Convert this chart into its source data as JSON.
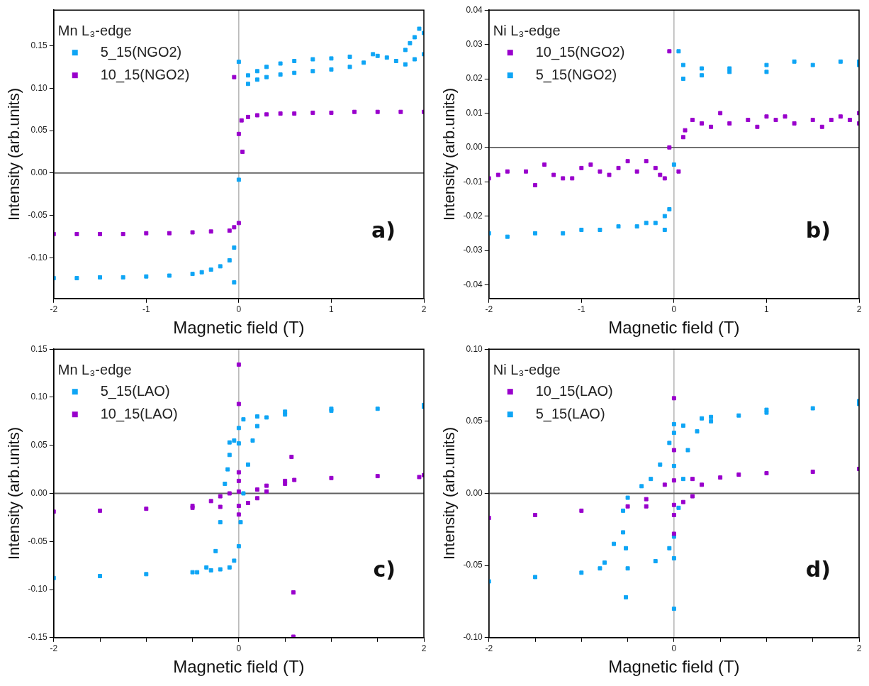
{
  "chart_data": [
    {
      "type": "scatter",
      "xlabel": "Magnetic field (T)",
      "ylabel": "Intensity (arb.units)",
      "legend_title": "Mn L₃-edge",
      "legend": "top left",
      "marker": "square",
      "annotations": [
        "a)"
      ],
      "xlim": [
        -2,
        2
      ],
      "xticks": [
        -2,
        -1,
        0,
        1,
        2
      ],
      "ylim": [
        -0.148,
        0.192
      ],
      "yticks": [
        {
          "value": -0.1,
          "label": "-0.10"
        },
        {
          "value": -0.05,
          "label": "-0.05"
        },
        {
          "value": 0,
          "label": "0.00"
        },
        {
          "value": 0.05,
          "label": "0.05"
        },
        {
          "value": 0.1,
          "label": "0.10"
        },
        {
          "value": 0.15,
          "label": "0.15"
        }
      ],
      "ref_lines": [
        {
          "axis": "x",
          "value": 0,
          "color": "#a0a0a0"
        },
        {
          "axis": "y",
          "value": 0,
          "color": "#606060"
        }
      ],
      "series": [
        {
          "name": "5_15(NGO2)",
          "color": "#0ea5f5",
          "x": [
            -2,
            -1.75,
            -1.5,
            -1.25,
            -1,
            -0.75,
            -0.5,
            -0.4,
            -0.3,
            -0.2,
            -0.1,
            -0.05,
            -0.05,
            0,
            0,
            0.1,
            0.2,
            0.3,
            0.45,
            0.6,
            0.8,
            1,
            1.2,
            1.35,
            1.5,
            1.6,
            1.7,
            1.8,
            1.9,
            2,
            0.1,
            0.2,
            0.3,
            0.45,
            0.6,
            0.8,
            1,
            1.2,
            1.45,
            1.8,
            1.85,
            1.9,
            1.95,
            2
          ],
          "values": [
            -0.124,
            -0.124,
            -0.123,
            -0.123,
            -0.122,
            -0.121,
            -0.119,
            -0.117,
            -0.114,
            -0.11,
            -0.103,
            -0.088,
            -0.129,
            -0.008,
            0.131,
            0.105,
            0.11,
            0.113,
            0.116,
            0.118,
            0.12,
            0.122,
            0.125,
            0.13,
            0.138,
            0.136,
            0.132,
            0.128,
            0.134,
            0.14,
            0.115,
            0.12,
            0.125,
            0.129,
            0.132,
            0.134,
            0.135,
            0.137,
            0.14,
            0.145,
            0.153,
            0.16,
            0.17,
            0.165
          ]
        },
        {
          "name": "10_15(NGO2)",
          "color": "#9900cc",
          "x": [
            -2,
            -1.75,
            -1.5,
            -1.25,
            -1,
            -0.75,
            -0.5,
            -0.3,
            -0.1,
            -0.05,
            0,
            -0.05,
            0,
            0.04,
            0.03,
            0.1,
            0.2,
            0.3,
            0.45,
            0.6,
            0.8,
            1,
            1.25,
            1.5,
            1.75,
            2
          ],
          "values": [
            -0.072,
            -0.072,
            -0.072,
            -0.072,
            -0.071,
            -0.071,
            -0.07,
            -0.069,
            -0.068,
            -0.064,
            -0.059,
            0.113,
            0.046,
            0.025,
            0.062,
            0.066,
            0.068,
            0.069,
            0.07,
            0.07,
            0.071,
            0.071,
            0.072,
            0.072,
            0.072,
            0.072
          ]
        }
      ]
    },
    {
      "type": "scatter",
      "xlabel": "Magnetic field (T)",
      "ylabel": "Intensity (arb.units)",
      "legend_title": "Ni L₃-edge",
      "legend": "top left",
      "marker": "square",
      "annotations": [
        "b)"
      ],
      "xlim": [
        -2,
        2
      ],
      "xticks": [
        -2,
        -1,
        0,
        1,
        2
      ],
      "ylim": [
        -0.044,
        0.04
      ],
      "yticks": [
        {
          "value": -0.04,
          "label": "-0.04"
        },
        {
          "value": -0.03,
          "label": "-0.03"
        },
        {
          "value": -0.02,
          "label": "-0.02"
        },
        {
          "value": -0.01,
          "label": "-0.01"
        },
        {
          "value": 0,
          "label": "0.00"
        },
        {
          "value": 0.01,
          "label": "0.01"
        },
        {
          "value": 0.02,
          "label": "0.02"
        },
        {
          "value": 0.03,
          "label": "0.03"
        },
        {
          "value": 0.04,
          "label": "0.04"
        }
      ],
      "ref_lines": [
        {
          "axis": "x",
          "value": 0,
          "color": "#a0a0a0"
        },
        {
          "axis": "y",
          "value": 0,
          "color": "#606060"
        }
      ],
      "series": [
        {
          "name": "10_15(NGO2)",
          "color": "#9900cc",
          "x": [
            -2,
            -1.9,
            -1.8,
            -1.6,
            -1.5,
            -1.4,
            -1.3,
            -1.2,
            -1.1,
            -1,
            -0.9,
            -0.8,
            -0.7,
            -0.6,
            -0.5,
            -0.4,
            -0.3,
            -0.2,
            -0.15,
            -0.1,
            -0.05,
            -0.05,
            0.05,
            0.1,
            0.12,
            0.2,
            0.3,
            0.4,
            0.5,
            0.6,
            0.8,
            0.9,
            1,
            1.1,
            1.2,
            1.3,
            1.5,
            1.6,
            1.7,
            1.8,
            1.9,
            2,
            2
          ],
          "values": [
            -0.009,
            -0.008,
            -0.007,
            -0.007,
            -0.011,
            -0.005,
            -0.008,
            -0.009,
            -0.009,
            -0.006,
            -0.005,
            -0.007,
            -0.008,
            -0.006,
            -0.004,
            -0.007,
            -0.004,
            -0.006,
            -0.008,
            -0.009,
            0.028,
            0,
            -0.007,
            0.003,
            0.005,
            0.008,
            0.007,
            0.006,
            0.01,
            0.007,
            0.008,
            0.006,
            0.009,
            0.008,
            0.009,
            0.007,
            0.008,
            0.006,
            0.008,
            0.009,
            0.008,
            0.01,
            0.007
          ]
        },
        {
          "name": "5_15(NGO2)",
          "color": "#0ea5f5",
          "x": [
            -2,
            -1.8,
            -1.5,
            -1.2,
            -1,
            -0.8,
            -0.6,
            -0.4,
            -0.3,
            -0.2,
            -0.1,
            -0.1,
            -0.05,
            0,
            0.05,
            0.1,
            0.1,
            0.3,
            0.3,
            0.6,
            0.6,
            1,
            1,
            1.3,
            1.5,
            1.8,
            2,
            2
          ],
          "values": [
            -0.025,
            -0.026,
            -0.025,
            -0.025,
            -0.024,
            -0.024,
            -0.023,
            -0.023,
            -0.022,
            -0.022,
            -0.024,
            -0.02,
            -0.018,
            -0.005,
            0.028,
            0.024,
            0.02,
            0.021,
            0.023,
            0.022,
            0.023,
            0.024,
            0.022,
            0.025,
            0.024,
            0.025,
            0.024,
            0.025
          ]
        }
      ]
    },
    {
      "type": "scatter",
      "xlabel": "Magnetic field (T)",
      "ylabel": "Intensity (arb.units)",
      "legend_title": "Mn L₃-edge",
      "legend": "top left",
      "marker": "square",
      "annotations": [
        "c)"
      ],
      "xlim": [
        -2,
        2
      ],
      "xticks": [
        -2,
        {
          "value": -1.5,
          "label": null
        },
        {
          "value": -1,
          "label": null
        },
        {
          "value": -0.5,
          "label": null
        },
        0,
        {
          "value": 0.5,
          "label": null
        },
        {
          "value": 1,
          "label": null
        },
        {
          "value": 1.5,
          "label": null
        },
        2
      ],
      "ylim": [
        -0.15,
        0.15
      ],
      "yticks": [
        {
          "value": -0.15,
          "label": "-0.15"
        },
        {
          "value": -0.1,
          "label": "-0.10"
        },
        {
          "value": -0.05,
          "label": "-0.05"
        },
        {
          "value": 0,
          "label": "0.00"
        },
        {
          "value": 0.05,
          "label": "0.05"
        },
        {
          "value": 0.1,
          "label": "0.10"
        },
        {
          "value": 0.15,
          "label": "0.15"
        }
      ],
      "ref_lines": [
        {
          "axis": "x",
          "value": 0,
          "color": "#a0a0a0"
        },
        {
          "axis": "y",
          "value": 0,
          "color": "#606060"
        }
      ],
      "series": [
        {
          "name": "5_15(LAO)",
          "color": "#0ea5f5",
          "x": [
            -2,
            -1.5,
            -1,
            -0.5,
            -0.3,
            -0.2,
            -0.1,
            -0.05,
            0,
            0.02,
            0.05,
            0.1,
            0.15,
            0.2,
            0.3,
            0.5,
            1,
            1.5,
            2,
            2,
            1,
            0.5,
            0.2,
            0.05,
            0,
            -0.05,
            -0.1,
            -0.15,
            -0.2,
            -0.25,
            -0.35,
            -0.45,
            -0.1,
            0,
            -0.12
          ],
          "values": [
            -0.088,
            -0.086,
            -0.084,
            -0.082,
            -0.08,
            -0.079,
            -0.077,
            -0.07,
            -0.055,
            -0.03,
            0,
            0.03,
            0.055,
            0.07,
            0.079,
            0.082,
            0.086,
            0.088,
            0.09,
            0.092,
            0.088,
            0.085,
            0.08,
            0.077,
            0.068,
            0.055,
            0.04,
            0.01,
            -0.03,
            -0.06,
            -0.077,
            -0.082,
            0.053,
            0.052,
            0.025
          ]
        },
        {
          "name": "10_15(LAO)",
          "color": "#9900cc",
          "x": [
            -2,
            -1.5,
            -1,
            -0.5,
            -0.3,
            -0.2,
            -0.1,
            0,
            0.2,
            0.3,
            0.5,
            0.6,
            1,
            1.5,
            2,
            1.95,
            0.5,
            0.3,
            0.2,
            0.1,
            0,
            -0.2,
            -0.5,
            0,
            0,
            0,
            0,
            0,
            0.57,
            0.59,
            0.59
          ],
          "values": [
            -0.019,
            -0.018,
            -0.016,
            -0.013,
            -0.008,
            -0.003,
            0,
            0.002,
            0.004,
            0.008,
            0.013,
            0.014,
            0.016,
            0.018,
            0.019,
            0.017,
            0.01,
            0.002,
            -0.005,
            -0.01,
            -0.013,
            -0.014,
            -0.015,
            0.134,
            0.093,
            0.022,
            0.013,
            -0.022,
            0.038,
            -0.103,
            -0.149
          ]
        }
      ]
    },
    {
      "type": "scatter",
      "xlabel": "Magnetic field (T)",
      "ylabel": "Intensity (arb.units)",
      "legend_title": "Ni L₃-edge",
      "legend": "top left",
      "marker": "square",
      "annotations": [
        "d)"
      ],
      "xlim": [
        -2,
        2
      ],
      "xticks": [
        -2,
        {
          "value": -1.5,
          "label": null
        },
        {
          "value": -1,
          "label": null
        },
        {
          "value": -0.5,
          "label": null
        },
        0,
        {
          "value": 0.5,
          "label": null
        },
        {
          "value": 1,
          "label": null
        },
        {
          "value": 1.5,
          "label": null
        },
        2
      ],
      "ylim": [
        -0.1,
        0.1
      ],
      "yticks": [
        {
          "value": -0.1,
          "label": "-0.10"
        },
        {
          "value": -0.05,
          "label": "-0.05"
        },
        {
          "value": 0,
          "label": "0.00"
        },
        {
          "value": 0.05,
          "label": "0.05"
        },
        {
          "value": 0.1,
          "label": "0.10"
        }
      ],
      "ref_lines": [
        {
          "axis": "x",
          "value": 0,
          "color": "#a0a0a0"
        },
        {
          "axis": "y",
          "value": 0,
          "color": "#606060"
        }
      ],
      "series": [
        {
          "name": "10_15(LAO)",
          "color": "#9900cc",
          "x": [
            -2,
            -1.5,
            -1,
            -0.5,
            -0.3,
            -0.1,
            0,
            0.2,
            0.5,
            0.7,
            1,
            1.5,
            2,
            0.3,
            0.2,
            0.1,
            0,
            -0.3,
            0,
            0,
            0,
            0
          ],
          "values": [
            -0.017,
            -0.015,
            -0.012,
            -0.009,
            -0.004,
            0.006,
            0.009,
            0.01,
            0.011,
            0.013,
            0.014,
            0.015,
            0.017,
            0.006,
            -0.002,
            -0.006,
            -0.008,
            -0.009,
            0.066,
            0.03,
            -0.015,
            -0.028
          ]
        },
        {
          "name": "5_15(LAO)",
          "color": "#0ea5f5",
          "x": [
            -2,
            -1.5,
            -1,
            -0.5,
            -0.2,
            -0.05,
            0,
            0.05,
            0.1,
            0.15,
            0.25,
            0.4,
            0.7,
            1,
            1.5,
            2,
            2,
            1,
            0.4,
            0.3,
            0.1,
            0,
            -0.05,
            -0.15,
            -0.25,
            -0.35,
            -0.5,
            -0.55,
            -0.55,
            -0.65,
            -0.75,
            -0.8,
            -0.52,
            -0.52,
            0,
            0,
            0,
            0
          ],
          "values": [
            -0.061,
            -0.058,
            -0.055,
            -0.052,
            -0.047,
            -0.038,
            -0.03,
            -0.01,
            0.01,
            0.03,
            0.043,
            0.05,
            0.054,
            0.056,
            0.059,
            0.062,
            0.064,
            0.058,
            0.053,
            0.052,
            0.047,
            0.042,
            0.035,
            0.02,
            0.01,
            0.005,
            -0.003,
            -0.012,
            -0.027,
            -0.035,
            -0.048,
            -0.052,
            -0.038,
            -0.072,
            -0.08,
            0.019,
            -0.045,
            0.048
          ]
        }
      ]
    }
  ]
}
